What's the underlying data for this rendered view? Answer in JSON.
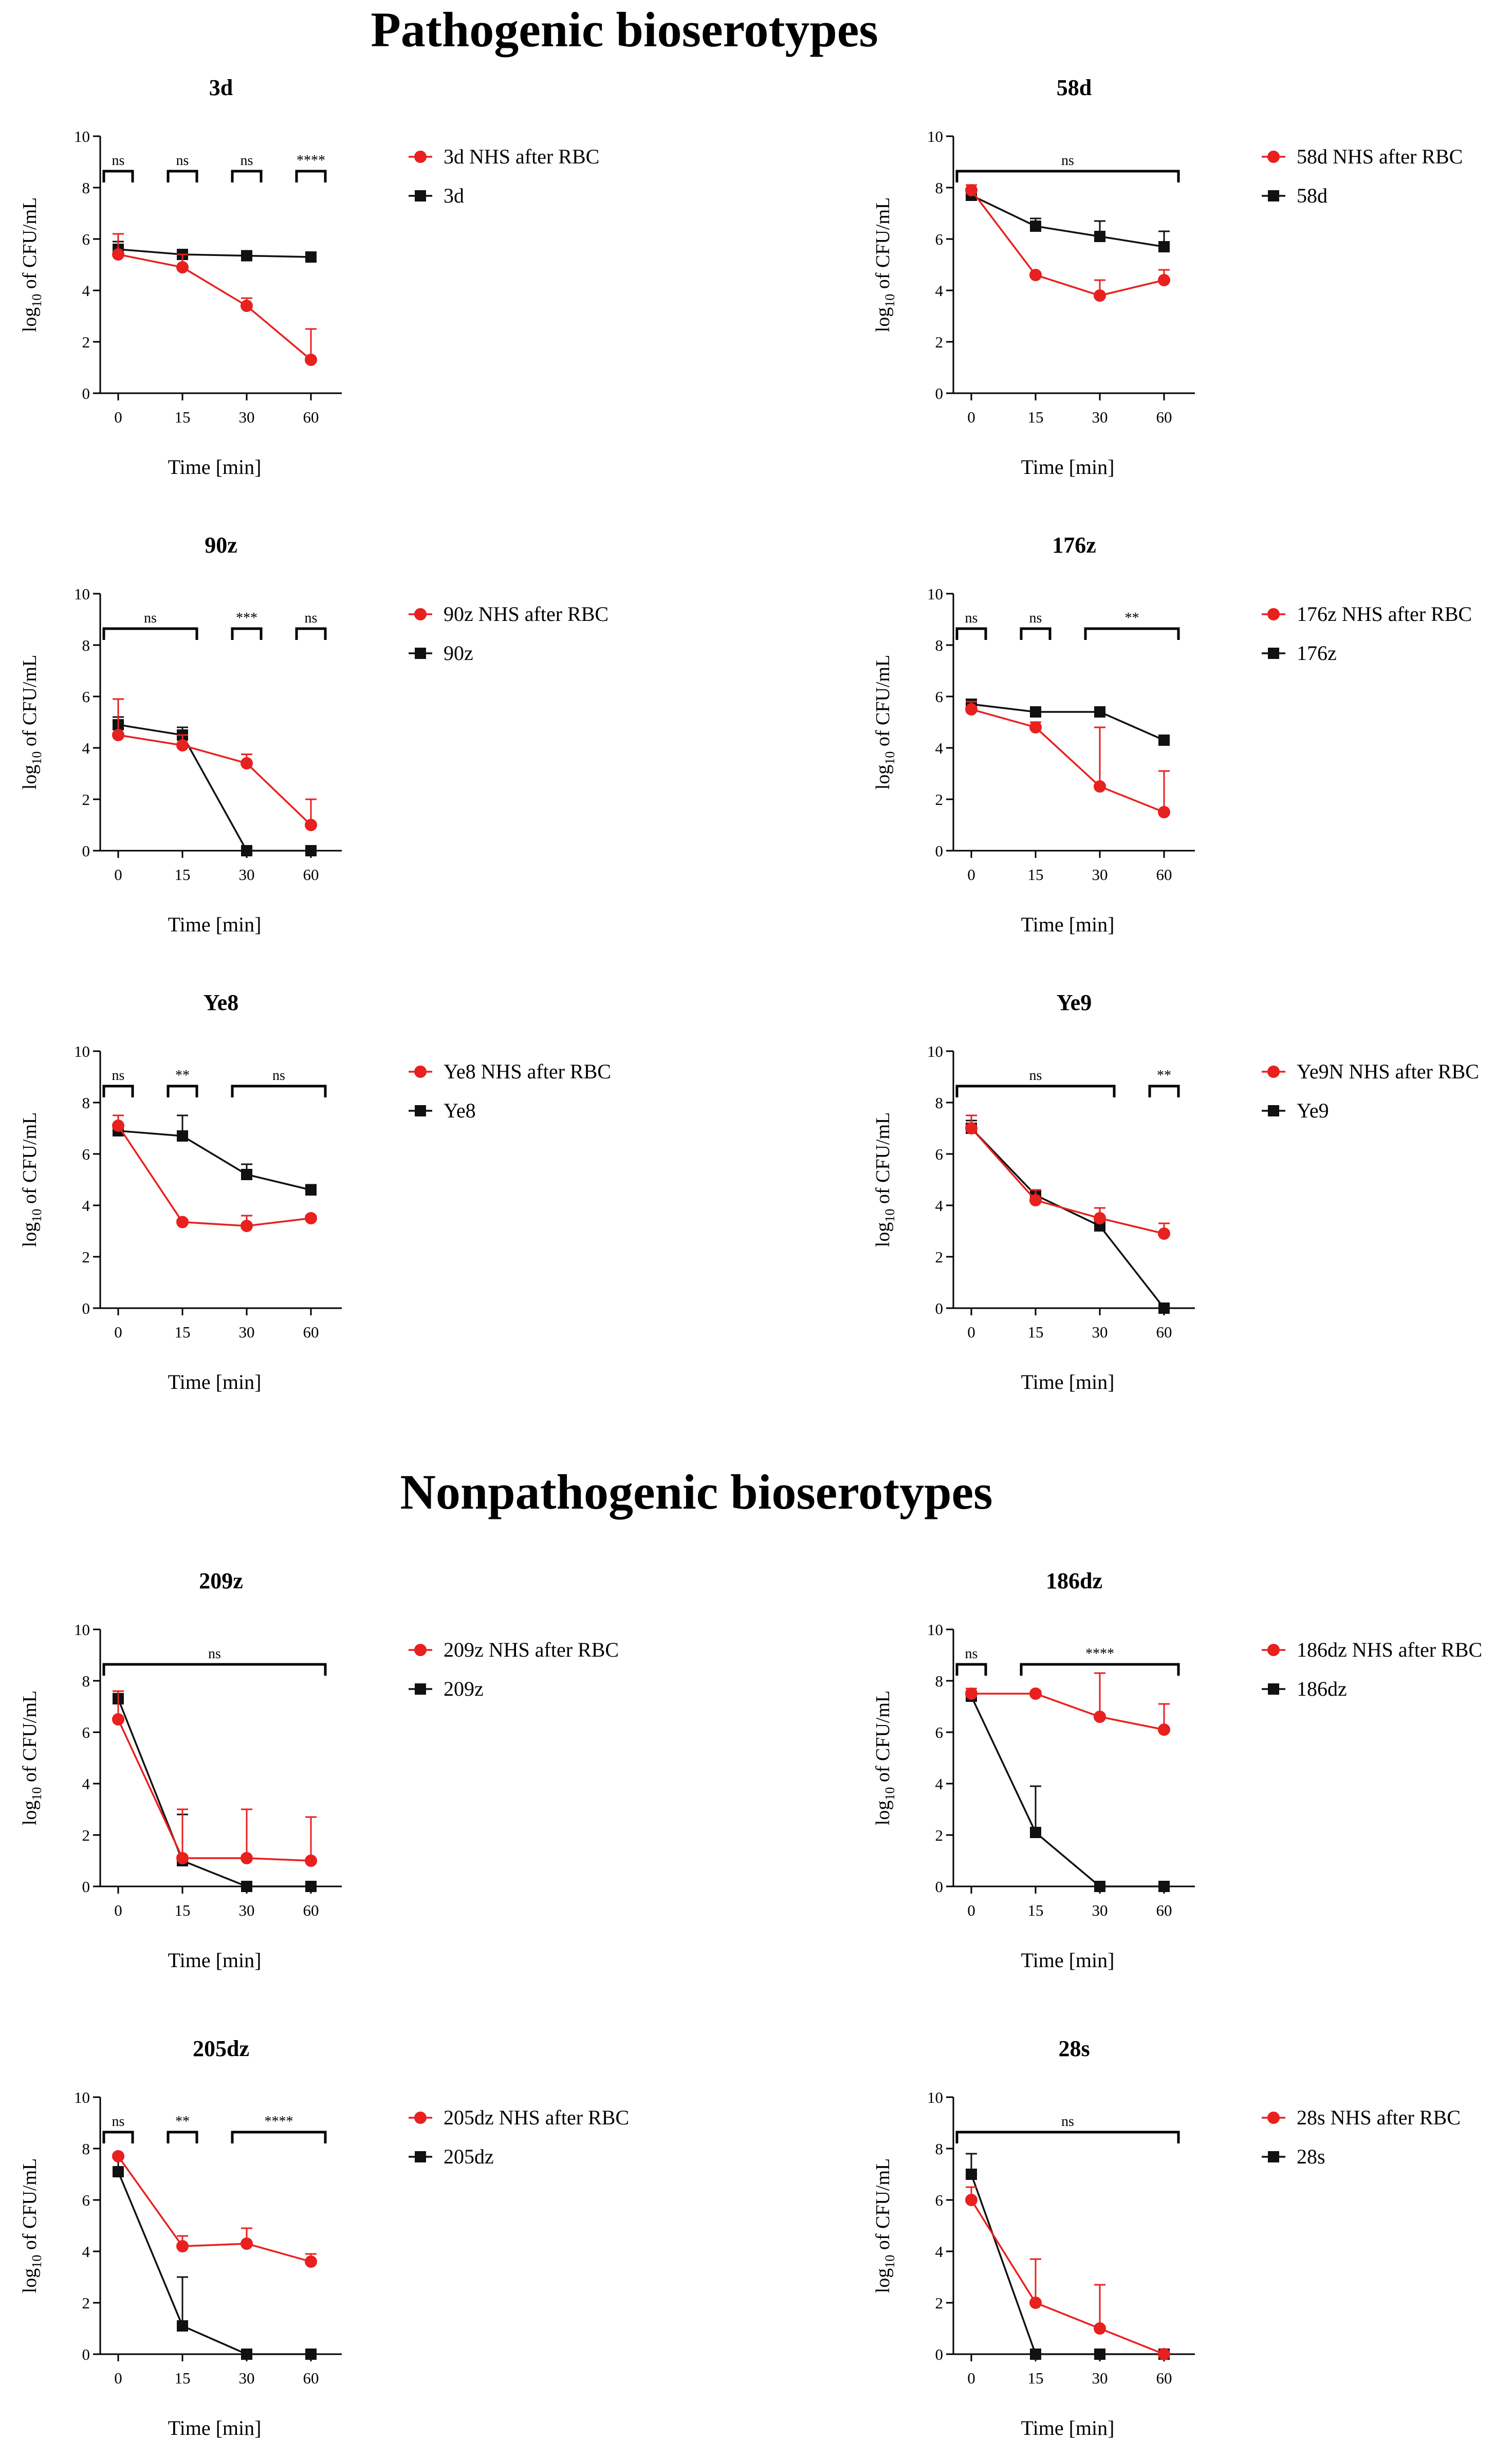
{
  "section_titles": [
    "Pathogenic bioserotypes",
    "Nonpathogenic bioserotypes"
  ],
  "colors": {
    "nhs": "#e8201e",
    "control": "#111111",
    "axis": "#000000"
  },
  "chart_data": [
    {
      "type": "line",
      "title": "3d",
      "group": "Pathogenic bioserotypes",
      "xlabel": "Time [min]",
      "ylabel": "log10 of CFU/mL",
      "ylim": [
        0,
        10
      ],
      "x": [
        "0",
        "15",
        "30",
        "60"
      ],
      "yticks": [
        "0",
        "2",
        "4",
        "6",
        "8",
        "10"
      ],
      "series": [
        {
          "name": "3d NHS after RBC",
          "color": "#e8201e",
          "marker": "circle",
          "values": [
            5.4,
            4.9,
            3.4,
            1.3
          ],
          "err": [
            0.8,
            0.5,
            0.3,
            1.2
          ]
        },
        {
          "name": "3d",
          "color": "#111111",
          "marker": "square",
          "values": [
            5.6,
            5.4,
            5.35,
            5.3
          ],
          "err": [
            0.3,
            0.15,
            0.1,
            0.1
          ]
        }
      ],
      "significance": [
        {
          "from": 0,
          "to": 0,
          "label": "ns"
        },
        {
          "from": 1,
          "to": 1,
          "label": "ns"
        },
        {
          "from": 2,
          "to": 2,
          "label": "ns"
        },
        {
          "from": 3,
          "to": 3,
          "label": "****"
        }
      ]
    },
    {
      "type": "line",
      "title": "58d",
      "group": "Pathogenic bioserotypes",
      "xlabel": "Time [min]",
      "ylabel": "log10 of CFU/mL",
      "ylim": [
        0,
        10
      ],
      "x": [
        "0",
        "15",
        "30",
        "60"
      ],
      "yticks": [
        "0",
        "2",
        "4",
        "6",
        "8",
        "10"
      ],
      "series": [
        {
          "name": "58d NHS after RBC",
          "color": "#e8201e",
          "marker": "circle",
          "values": [
            7.9,
            4.6,
            3.8,
            4.4
          ],
          "err": [
            0.2,
            0.1,
            0.6,
            0.4
          ]
        },
        {
          "name": "58d",
          "color": "#111111",
          "marker": "square",
          "values": [
            7.7,
            6.5,
            6.1,
            5.7
          ],
          "err": [
            0.2,
            0.3,
            0.6,
            0.6
          ]
        }
      ],
      "significance": [
        {
          "from": 0,
          "to": 3,
          "label": "ns"
        }
      ]
    },
    {
      "type": "line",
      "title": "90z",
      "group": "Pathogenic bioserotypes",
      "xlabel": "Time [min]",
      "ylabel": "log10 of CFU/mL",
      "ylim": [
        0,
        10
      ],
      "x": [
        "0",
        "15",
        "30",
        "60"
      ],
      "yticks": [
        "0",
        "2",
        "4",
        "6",
        "8",
        "10"
      ],
      "series": [
        {
          "name": "90z NHS after RBC",
          "color": "#e8201e",
          "marker": "circle",
          "values": [
            4.5,
            4.1,
            3.4,
            1.0
          ],
          "err": [
            1.4,
            0.4,
            0.35,
            1.0
          ]
        },
        {
          "name": "90z",
          "color": "#111111",
          "marker": "square",
          "values": [
            4.9,
            4.5,
            0,
            0
          ],
          "err": [
            0.3,
            0.3,
            0,
            0
          ]
        }
      ],
      "significance": [
        {
          "from": 0,
          "to": 1,
          "label": "ns"
        },
        {
          "from": 2,
          "to": 2,
          "label": "***"
        },
        {
          "from": 3,
          "to": 3,
          "label": "ns"
        }
      ]
    },
    {
      "type": "line",
      "title": "176z",
      "group": "Pathogenic bioserotypes",
      "xlabel": "Time [min]",
      "ylabel": "log10 of CFU/mL",
      "ylim": [
        0,
        10
      ],
      "x": [
        "0",
        "15",
        "30",
        "60"
      ],
      "yticks": [
        "0",
        "2",
        "4",
        "6",
        "8",
        "10"
      ],
      "series": [
        {
          "name": "176z NHS after RBC",
          "color": "#e8201e",
          "marker": "circle",
          "values": [
            5.5,
            4.8,
            2.5,
            1.5
          ],
          "err": [
            0.3,
            0.2,
            2.3,
            1.6
          ]
        },
        {
          "name": "176z",
          "color": "#111111",
          "marker": "square",
          "values": [
            5.7,
            5.4,
            5.4,
            4.3
          ],
          "err": [
            0.1,
            0.1,
            0.1,
            0.1
          ]
        }
      ],
      "significance": [
        {
          "from": 0,
          "to": 0,
          "label": "ns"
        },
        {
          "from": 1,
          "to": 1,
          "label": "ns"
        },
        {
          "from": 2,
          "to": 3,
          "label": "**"
        }
      ]
    },
    {
      "type": "line",
      "title": "Ye8",
      "group": "Pathogenic bioserotypes",
      "xlabel": "Time [min]",
      "ylabel": "log10 of CFU/mL",
      "ylim": [
        0,
        10
      ],
      "x": [
        "0",
        "15",
        "30",
        "60"
      ],
      "yticks": [
        "0",
        "2",
        "4",
        "6",
        "8",
        "10"
      ],
      "series": [
        {
          "name": "Ye8 NHS after RBC",
          "color": "#e8201e",
          "marker": "circle",
          "values": [
            7.1,
            3.35,
            3.2,
            3.5
          ],
          "err": [
            0.4,
            0.1,
            0.4,
            0.1
          ]
        },
        {
          "name": "Ye8",
          "color": "#111111",
          "marker": "square",
          "values": [
            6.9,
            6.7,
            5.2,
            4.6
          ],
          "err": [
            0.6,
            0.8,
            0.4,
            0.2
          ]
        }
      ],
      "significance": [
        {
          "from": 0,
          "to": 0,
          "label": "ns"
        },
        {
          "from": 1,
          "to": 1,
          "label": "**"
        },
        {
          "from": 2,
          "to": 3,
          "label": "ns"
        }
      ]
    },
    {
      "type": "line",
      "title": "Ye9",
      "group": "Pathogenic bioserotypes",
      "xlabel": "Time [min]",
      "ylabel": "log10 of CFU/mL",
      "ylim": [
        0,
        10
      ],
      "x": [
        "0",
        "15",
        "30",
        "60"
      ],
      "yticks": [
        "0",
        "2",
        "4",
        "6",
        "8",
        "10"
      ],
      "series": [
        {
          "name": "Ye9N NHS after RBC",
          "color": "#e8201e",
          "marker": "circle",
          "values": [
            7.0,
            4.2,
            3.5,
            2.9
          ],
          "err": [
            0.5,
            0.4,
            0.4,
            0.4
          ]
        },
        {
          "name": "Ye9",
          "color": "#111111",
          "marker": "square",
          "values": [
            7.0,
            4.4,
            3.2,
            0
          ],
          "err": [
            0.3,
            0.2,
            0.2,
            0
          ]
        }
      ],
      "significance": [
        {
          "from": 0,
          "to": 2,
          "label": "ns"
        },
        {
          "from": 3,
          "to": 3,
          "label": "**"
        }
      ]
    },
    {
      "type": "line",
      "title": "209z",
      "group": "Nonpathogenic bioserotypes",
      "xlabel": "Time [min]",
      "ylabel": "log10 of CFU/mL",
      "ylim": [
        0,
        10
      ],
      "x": [
        "0",
        "15",
        "30",
        "60"
      ],
      "yticks": [
        "0",
        "2",
        "4",
        "6",
        "8",
        "10"
      ],
      "series": [
        {
          "name": "209z NHS after RBC",
          "color": "#e8201e",
          "marker": "circle",
          "values": [
            6.5,
            1.1,
            1.1,
            1.0
          ],
          "err": [
            1.1,
            1.9,
            1.9,
            1.7
          ]
        },
        {
          "name": "209z",
          "color": "#111111",
          "marker": "square",
          "values": [
            7.3,
            1.0,
            0,
            0
          ],
          "err": [
            0.2,
            1.8,
            0,
            0
          ]
        }
      ],
      "significance": [
        {
          "from": 0,
          "to": 3,
          "label": "ns"
        }
      ]
    },
    {
      "type": "line",
      "title": "186dz",
      "group": "Nonpathogenic bioserotypes",
      "xlabel": "Time [min]",
      "ylabel": "log10 of CFU/mL",
      "ylim": [
        0,
        10
      ],
      "x": [
        "0",
        "15",
        "30",
        "60"
      ],
      "yticks": [
        "0",
        "2",
        "4",
        "6",
        "8",
        "10"
      ],
      "series": [
        {
          "name": "186dz NHS after RBC",
          "color": "#e8201e",
          "marker": "circle",
          "values": [
            7.5,
            7.5,
            6.6,
            6.1
          ],
          "err": [
            0.2,
            0.1,
            1.7,
            1.0
          ]
        },
        {
          "name": "186dz",
          "color": "#111111",
          "marker": "square",
          "values": [
            7.4,
            2.1,
            0,
            0
          ],
          "err": [
            0.2,
            1.8,
            0,
            0
          ]
        }
      ],
      "significance": [
        {
          "from": 0,
          "to": 0,
          "label": "ns"
        },
        {
          "from": 1,
          "to": 3,
          "label": "****"
        }
      ]
    },
    {
      "type": "line",
      "title": "205dz",
      "group": "Nonpathogenic bioserotypes",
      "xlabel": "Time [min]",
      "ylabel": "log10 of CFU/mL",
      "ylim": [
        0,
        10
      ],
      "x": [
        "0",
        "15",
        "30",
        "60"
      ],
      "yticks": [
        "0",
        "2",
        "4",
        "6",
        "8",
        "10"
      ],
      "series": [
        {
          "name": "205dz NHS after RBC",
          "color": "#e8201e",
          "marker": "circle",
          "values": [
            7.7,
            4.2,
            4.3,
            3.6
          ],
          "err": [
            0.1,
            0.4,
            0.6,
            0.3
          ]
        },
        {
          "name": "205dz",
          "color": "#111111",
          "marker": "square",
          "values": [
            7.1,
            1.1,
            0,
            0
          ],
          "err": [
            0.7,
            1.9,
            0,
            0
          ]
        }
      ],
      "significance": [
        {
          "from": 0,
          "to": 0,
          "label": "ns"
        },
        {
          "from": 1,
          "to": 1,
          "label": "**"
        },
        {
          "from": 2,
          "to": 3,
          "label": "****"
        }
      ]
    },
    {
      "type": "line",
      "title": "28s",
      "group": "Nonpathogenic bioserotypes",
      "xlabel": "Time [min]",
      "ylabel": "log10 of CFU/mL",
      "ylim": [
        0,
        10
      ],
      "x": [
        "0",
        "15",
        "30",
        "60"
      ],
      "yticks": [
        "0",
        "2",
        "4",
        "6",
        "8",
        "10"
      ],
      "series": [
        {
          "name": "28s NHS after RBC",
          "color": "#e8201e",
          "marker": "circle",
          "values": [
            6.0,
            2.0,
            1.0,
            0
          ],
          "err": [
            0.5,
            1.7,
            1.7,
            0
          ]
        },
        {
          "name": "28s",
          "color": "#111111",
          "marker": "square",
          "values": [
            7.0,
            0,
            0,
            0
          ],
          "err": [
            0.8,
            0,
            0,
            0
          ]
        }
      ],
      "significance": [
        {
          "from": 0,
          "to": 3,
          "label": "ns"
        }
      ]
    }
  ]
}
